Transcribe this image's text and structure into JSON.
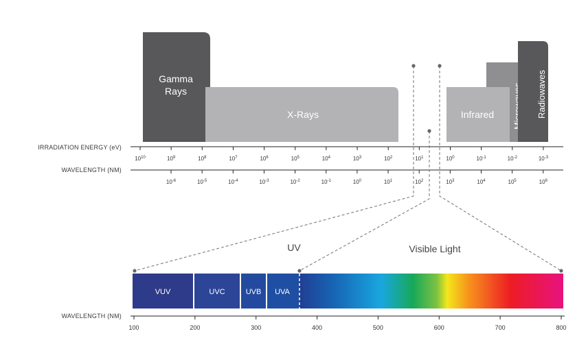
{
  "bands": {
    "gamma_line1": "Gamma",
    "gamma_line2": "Rays",
    "xrays": "X-Rays",
    "infrared": "Infrared",
    "microwaves": "Microwaves",
    "radiowaves": "Radiowaves"
  },
  "axis": {
    "energy_label": "IRRADIATION ENERGY (eV)",
    "wavelength_label": "WAVELENGTH (NM)",
    "energy_ticks": [
      {
        "m": "10",
        "e": "10"
      },
      {
        "m": "10",
        "e": "9"
      },
      {
        "m": "10",
        "e": "8"
      },
      {
        "m": "10",
        "e": "7"
      },
      {
        "m": "10",
        "e": "6"
      },
      {
        "m": "10",
        "e": "5"
      },
      {
        "m": "10",
        "e": "4"
      },
      {
        "m": "10",
        "e": "3"
      },
      {
        "m": "10",
        "e": "2"
      },
      {
        "m": "10",
        "e": "1"
      },
      {
        "m": "10",
        "e": "0"
      },
      {
        "m": "10",
        "e": "-1"
      },
      {
        "m": "10",
        "e": "-2"
      },
      {
        "m": "10",
        "e": "-3"
      }
    ],
    "wavelength_ticks": [
      {
        "m": "10",
        "e": "-6"
      },
      {
        "m": "10",
        "e": "-5"
      },
      {
        "m": "10",
        "e": "-4"
      },
      {
        "m": "10",
        "e": "-3"
      },
      {
        "m": "10",
        "e": "-2"
      },
      {
        "m": "10",
        "e": "-1"
      },
      {
        "m": "10",
        "e": "0"
      },
      {
        "m": "10",
        "e": "1"
      },
      {
        "m": "10",
        "e": "2"
      },
      {
        "m": "10",
        "e": "3"
      },
      {
        "m": "10",
        "e": "4"
      },
      {
        "m": "10",
        "e": "5"
      },
      {
        "m": "10",
        "e": "6"
      }
    ]
  },
  "regions": {
    "uv": "UV",
    "visible": "Visible Light"
  },
  "sub_bands": {
    "vuv": "VUV",
    "uvc": "UVC",
    "uvb": "UVB",
    "uva": "UVA"
  },
  "bottom_axis": {
    "label": "WAVELENGTH (NM)",
    "ticks": [
      "100",
      "200",
      "300",
      "400",
      "500",
      "600",
      "700",
      "800"
    ]
  },
  "colors": {
    "gamma": "#58585a",
    "xrays": "#b3b3b5",
    "infrared": "#b3b3b5",
    "microwaves": "#8f8f91",
    "radiowaves": "#58585a",
    "uv_blue": "#2e3b8e",
    "spectrum_stops": [
      "#1f3f95",
      "#1565b8",
      "#1aa6df",
      "#1bb35a",
      "#f7ea16",
      "#f7941d",
      "#ed1c24",
      "#e8147f"
    ]
  }
}
